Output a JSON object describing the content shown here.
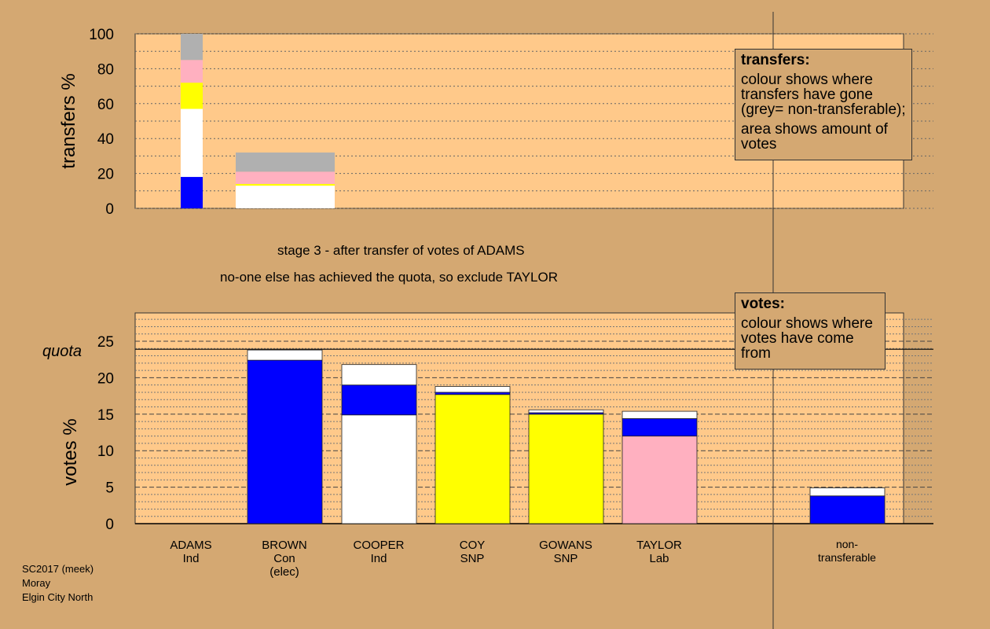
{
  "chart_data": [
    {
      "type": "bar",
      "stacked": true,
      "title": "transfers",
      "ylabel": "transfers %",
      "ylim": [
        0,
        100
      ],
      "yticks": [
        0,
        20,
        40,
        60,
        80,
        100
      ],
      "bars": [
        {
          "name": "ADAMS",
          "segments": [
            {
              "color": "#0000ff",
              "from": 0,
              "to": 18
            },
            {
              "color": "#ffffff",
              "from": 18,
              "to": 57
            },
            {
              "color": "#ffff00",
              "from": 57,
              "to": 72
            },
            {
              "color": "#ffb0c0",
              "from": 72,
              "to": 85
            },
            {
              "color": "#b0b0b0",
              "from": 85,
              "to": 100
            }
          ]
        },
        {
          "name": "BROWN",
          "segments": [
            {
              "color": "#ffffff",
              "from": 0,
              "to": 13
            },
            {
              "color": "#ffff00",
              "from": 13,
              "to": 14
            },
            {
              "color": "#ffb0c0",
              "from": 14,
              "to": 21
            },
            {
              "color": "#b0b0b0",
              "from": 21,
              "to": 32
            }
          ]
        }
      ]
    },
    {
      "type": "bar",
      "stacked": true,
      "title": "votes",
      "ylabel": "votes %",
      "ylim": [
        0,
        28.9
      ],
      "yticks": [
        0,
        5,
        10,
        15,
        20,
        25
      ],
      "quota": 23.9,
      "quota_label": "quota",
      "bars": [
        {
          "name": "ADAMS",
          "party": "Ind",
          "segments": []
        },
        {
          "name": "BROWN",
          "party": "Con",
          "note": "(elec)",
          "segments": [
            {
              "color": "#0000ff",
              "from": 0,
              "to": 22.4
            },
            {
              "color": "#ffffff",
              "from": 22.4,
              "to": 23.8
            }
          ]
        },
        {
          "name": "COOPER",
          "party": "Ind",
          "segments": [
            {
              "color": "#ffffff",
              "from": 0,
              "to": 14.9
            },
            {
              "color": "#0000ff",
              "from": 14.9,
              "to": 19.0
            },
            {
              "color": "#ffffff",
              "from": 19.0,
              "to": 21.8
            }
          ]
        },
        {
          "name": "COY",
          "party": "SNP",
          "segments": [
            {
              "color": "#ffff00",
              "from": 0,
              "to": 17.7
            },
            {
              "color": "#0000ff",
              "from": 17.7,
              "to": 18.0
            },
            {
              "color": "#ffffff",
              "from": 18.0,
              "to": 18.8
            }
          ]
        },
        {
          "name": "GOWANS",
          "party": "SNP",
          "segments": [
            {
              "color": "#ffff00",
              "from": 0,
              "to": 15.0
            },
            {
              "color": "#0000ff",
              "from": 15.0,
              "to": 15.2
            },
            {
              "color": "#ffffff",
              "from": 15.2,
              "to": 15.6
            }
          ]
        },
        {
          "name": "TAYLOR",
          "party": "Lab",
          "segments": [
            {
              "color": "#ffb0c0",
              "from": 0,
              "to": 12.0
            },
            {
              "color": "#0000ff",
              "from": 12.0,
              "to": 14.4
            },
            {
              "color": "#ffffff",
              "from": 14.4,
              "to": 15.4
            }
          ]
        },
        {
          "name": "non-",
          "party": "transferable",
          "segments": [
            {
              "color": "#0000ff",
              "from": 0,
              "to": 3.8
            },
            {
              "color": "#ffffff",
              "from": 3.8,
              "to": 4.9
            }
          ]
        }
      ]
    }
  ],
  "stage_line1": "stage 3 - after transfer of votes of ADAMS",
  "stage_line2": "no-one else has achieved the quota, so exclude TAYLOR",
  "legend_transfers": {
    "title": "transfers:",
    "p1": "colour shows where transfers have gone (grey= non-transferable);",
    "p2": "area shows amount of votes"
  },
  "legend_votes": {
    "title": "votes:",
    "p1": "colour shows where votes have come from"
  },
  "footer": [
    "SC2017 (meek)",
    "Moray",
    "Elgin City North"
  ]
}
